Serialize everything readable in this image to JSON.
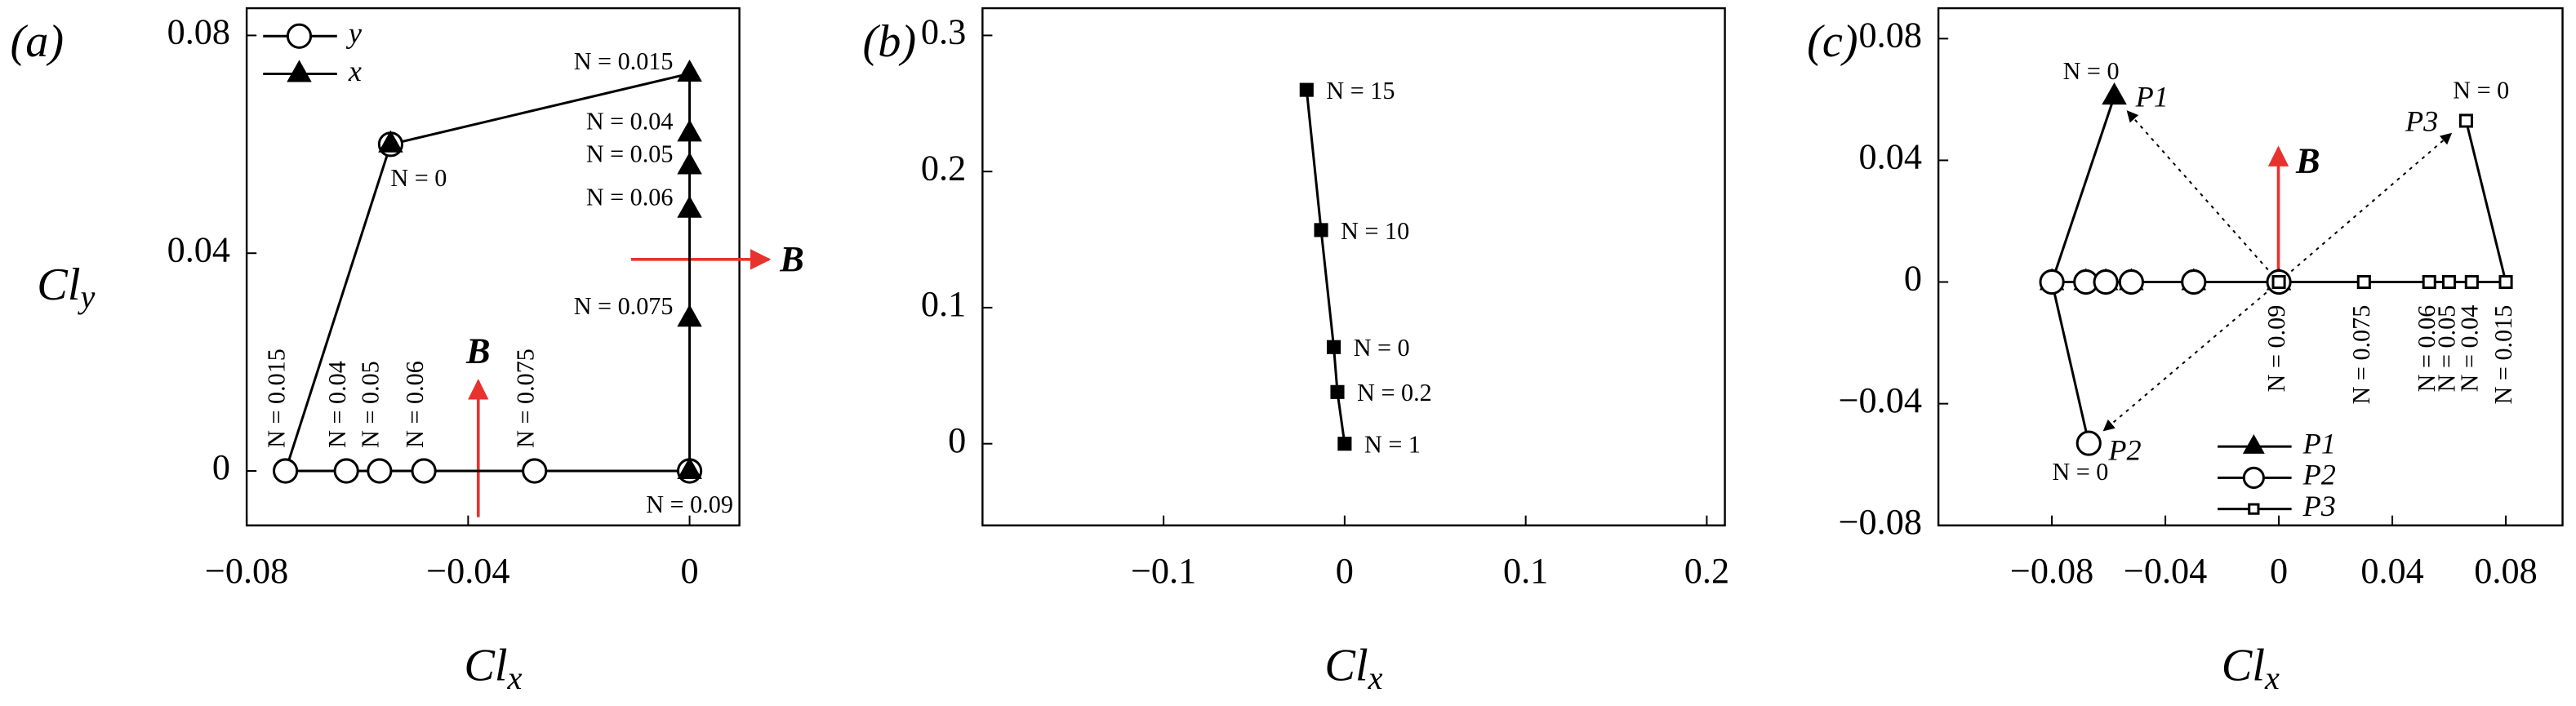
{
  "chart_data": [
    {
      "type": "line",
      "panel_label": "(a)",
      "xlabel": "Cl",
      "xlabel_sub": "x",
      "ylabel": "Cl",
      "ylabel_sub": "y",
      "xlim": [
        -0.08,
        0.009
      ],
      "xticks": [
        {
          "value": -0.08,
          "label": "−0.08"
        },
        {
          "value": -0.04,
          "label": "−0.04"
        },
        0
      ],
      "ylim": [
        -0.01,
        0.085
      ],
      "yticks": [
        0,
        0.04,
        0.08
      ],
      "legend": "upper left",
      "series": [
        {
          "name": "y",
          "color": "#000000",
          "marker": "circle",
          "filled": false,
          "x": [
            -0.054,
            -0.073,
            -0.062,
            -0.056,
            -0.048,
            -0.028,
            0
          ],
          "values": [
            0.06,
            0,
            0,
            0,
            0,
            0,
            0
          ],
          "point_labels": [
            "N = 0",
            "N = 0.015",
            "N = 0.04",
            "N = 0.05",
            "N = 0.06",
            "N = 0.075",
            "N = 0.09"
          ]
        },
        {
          "name": "x",
          "color": "#000000",
          "marker": "triangle",
          "filled": true,
          "x": [
            -0.054,
            0,
            0,
            0,
            0,
            0,
            0
          ],
          "values": [
            0.06,
            0.073,
            0.062,
            0.056,
            0.048,
            0.028,
            0
          ],
          "point_labels": [
            null,
            "N = 0.015",
            "N = 0.04",
            "N = 0.05",
            "N = 0.06",
            "N = 0.075",
            null
          ]
        }
      ],
      "annotations": [
        {
          "text": "B"
        },
        {
          "text": "B"
        }
      ]
    },
    {
      "type": "line",
      "panel_label": "(b)",
      "xlabel": "Cl",
      "xlabel_sub": "x",
      "xlim": [
        -0.2,
        0.21
      ],
      "xticks": [
        {
          "value": -0.1,
          "label": "−0.1"
        },
        0,
        0.1,
        0.2
      ],
      "ylim": [
        -0.06,
        0.32
      ],
      "yticks": [
        0,
        0.1,
        0.2,
        0.3
      ],
      "series": [
        {
          "color": "#000000",
          "marker": "square",
          "filled": true,
          "x": [
            -0.021,
            -0.013,
            -0.006,
            -0.004,
            0
          ],
          "values": [
            0.26,
            0.157,
            0.071,
            0.038,
            0
          ],
          "point_labels": [
            "N = 15",
            "N = 10",
            "N = 0",
            "N = 0.2",
            "N = 1"
          ]
        }
      ]
    },
    {
      "type": "line",
      "panel_label": "(c)",
      "xlabel": "Cl",
      "xlabel_sub": "x",
      "xlim": [
        -0.12,
        0.1
      ],
      "xticks": [
        {
          "value": -0.08,
          "label": "−0.08"
        },
        {
          "value": -0.04,
          "label": "−0.04"
        },
        0,
        0.04,
        0.08
      ],
      "ylim": [
        -0.08,
        0.09
      ],
      "yticks": [
        {
          "value": -0.08,
          "label": "−0.08"
        },
        {
          "value": -0.04,
          "label": "−0.04"
        },
        0,
        0.04,
        0.08
      ],
      "legend": "lower center",
      "series": [
        {
          "name": "P1",
          "color": "#000000",
          "marker": "triangle",
          "filled": true,
          "x": [
            -0.058,
            -0.08,
            -0.068,
            -0.061,
            -0.052,
            -0.03,
            0
          ],
          "values": [
            0.061,
            0,
            0,
            0,
            0,
            0,
            0
          ],
          "point_labels": [
            "N = 0",
            null,
            null,
            null,
            null,
            null,
            null
          ]
        },
        {
          "name": "P2",
          "color": "#000000",
          "marker": "circle",
          "filled": false,
          "x": [
            -0.067,
            -0.08,
            -0.068,
            -0.061,
            -0.052,
            -0.03,
            0
          ],
          "values": [
            -0.053,
            0,
            0,
            0,
            0,
            0,
            0
          ],
          "point_labels": [
            "N = 0",
            null,
            null,
            null,
            null,
            null,
            null
          ]
        },
        {
          "name": "P3",
          "color": "#000000",
          "marker": "square",
          "filled": false,
          "x": [
            0.066,
            0.08,
            0.068,
            0.06,
            0.053,
            0.03,
            0
          ],
          "values": [
            0.053,
            0,
            0,
            0,
            0,
            0,
            0
          ],
          "point_labels": [
            "N = 0",
            "N = 0.015",
            "N = 0.04",
            "N = 0.05",
            "N = 0.06",
            "N = 0.075",
            "N = 0.09"
          ]
        }
      ],
      "annotations": [
        {
          "text": "B"
        }
      ]
    }
  ]
}
